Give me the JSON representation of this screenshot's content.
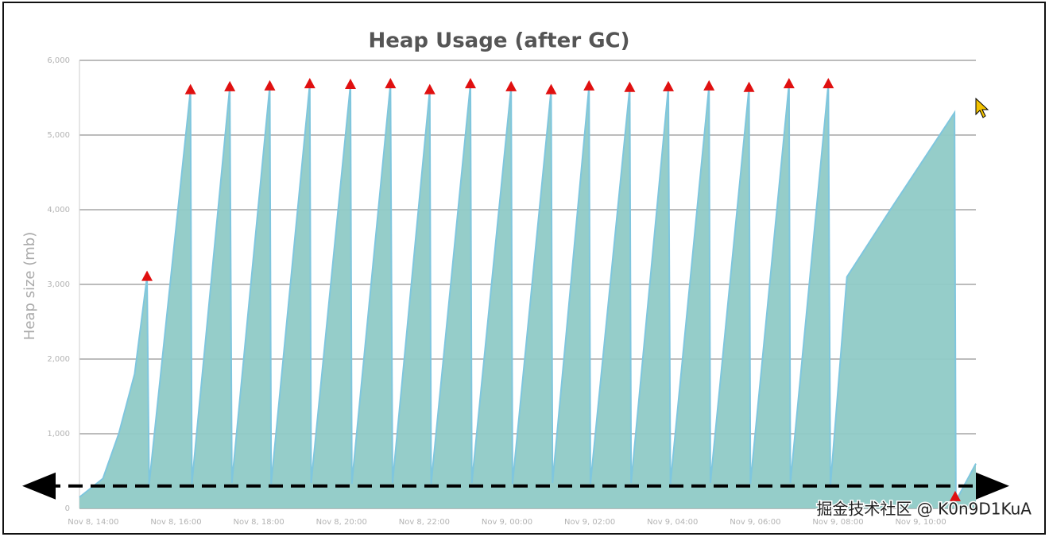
{
  "chart_data": {
    "type": "area",
    "title": "Heap Usage (after GC)",
    "y_label": "Heap size (mb)",
    "watermark": "掘金技术社区 @ K0n9D1KuA",
    "color": "#8fcac6",
    "line_color": "#7fc6de",
    "x": [
      "Nov 8, 13:40",
      "Nov 8, 14:14",
      "Nov 8, 14:37",
      "Nov 8, 15:00",
      "Nov 8, 15:18",
      "Nov 8, 15:21",
      "Nov 8, 16:21",
      "Nov 8, 16:23",
      "Nov 8, 17:18",
      "Nov 8, 17:21",
      "Nov 8, 18:16",
      "Nov 8, 18:18",
      "Nov 8, 19:14",
      "Nov 8, 19:16",
      "Nov 8, 20:13",
      "Nov 8, 20:15",
      "Nov 8, 21:11",
      "Nov 8, 21:14",
      "Nov 8, 22:08",
      "Nov 8, 22:10",
      "Nov 8, 23:07",
      "Nov 8, 23:09",
      "Nov 9, 00:06",
      "Nov 9, 00:08",
      "Nov 9, 01:04",
      "Nov 9, 01:06",
      "Nov 9, 01:59",
      "Nov 9, 02:01",
      "Nov 9, 02:58",
      "Nov 9, 03:00",
      "Nov 9, 03:54",
      "Nov 9, 03:57",
      "Nov 9, 04:53",
      "Nov 9, 04:55",
      "Nov 9, 05:51",
      "Nov 9, 05:53",
      "Nov 9, 06:49",
      "Nov 9, 06:51",
      "Nov 9, 07:46",
      "Nov 9, 07:49",
      "Nov 9, 08:13",
      "Nov 9, 09:16",
      "Nov 9, 10:49",
      "Nov 9, 10:51",
      "Nov 9, 11:20"
    ],
    "values": [
      150,
      400,
      1000,
      1800,
      3100,
      320,
      5600,
      330,
      5640,
      340,
      5650,
      330,
      5680,
      340,
      5670,
      330,
      5680,
      340,
      5600,
      330,
      5680,
      340,
      5640,
      330,
      5600,
      340,
      5650,
      330,
      5630,
      340,
      5640,
      330,
      5650,
      340,
      5630,
      330,
      5680,
      340,
      5680,
      300,
      3100,
      4000,
      5300,
      100,
      600
    ],
    "gc_events": {
      "color": "#e01010",
      "x": [
        "Nov 8, 15:18",
        "Nov 8, 16:21",
        "Nov 8, 17:18",
        "Nov 8, 18:16",
        "Nov 8, 19:14",
        "Nov 8, 20:13",
        "Nov 8, 21:11",
        "Nov 8, 22:08",
        "Nov 8, 23:07",
        "Nov 9, 00:06",
        "Nov 9, 01:04",
        "Nov 9, 01:59",
        "Nov 9, 02:58",
        "Nov 9, 03:54",
        "Nov 9, 04:53",
        "Nov 9, 05:51",
        "Nov 9, 06:49",
        "Nov 9, 07:46",
        "Nov 9, 10:50"
      ],
      "values": [
        3100,
        5600,
        5640,
        5650,
        5680,
        5670,
        5680,
        5600,
        5680,
        5640,
        5600,
        5650,
        5630,
        5640,
        5650,
        5630,
        5680,
        5680,
        150
      ]
    },
    "reference_line": {
      "value": 300,
      "style": "dashed",
      "color": "#000000"
    },
    "xlim": [
      "Nov 8, 13:40",
      "Nov 9, 11:20"
    ],
    "xticks": [
      "Nov 8, 14:00",
      "Nov 8, 16:00",
      "Nov 8, 18:00",
      "Nov 8, 20:00",
      "Nov 8, 22:00",
      "Nov 9, 00:00",
      "Nov 9, 02:00",
      "Nov 9, 04:00",
      "Nov 9, 06:00",
      "Nov 9, 08:00",
      "Nov 9, 10:00"
    ],
    "ylim": [
      0,
      6000
    ],
    "yticks": [
      0,
      {
        "value": 1000,
        "label": "1,000"
      },
      {
        "value": 2000,
        "label": "2,000"
      },
      {
        "value": 3000,
        "label": "3,000"
      },
      {
        "value": 4000,
        "label": "4,000"
      },
      {
        "value": 5000,
        "label": "5,000"
      },
      {
        "value": 6000,
        "label": "6,000"
      }
    ],
    "grid": true
  }
}
